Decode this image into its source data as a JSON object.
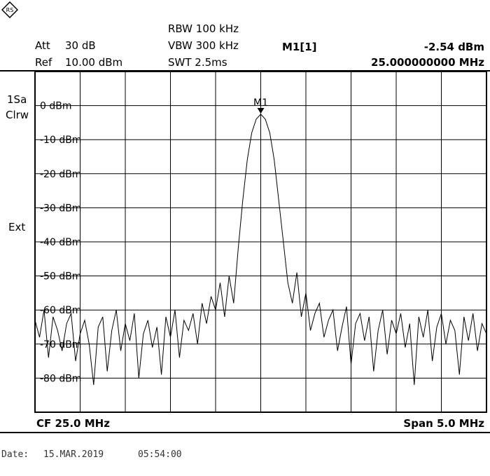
{
  "header": {
    "att_label": "Att",
    "att_value": "30 dB",
    "ref_label": "Ref",
    "ref_value": "10.00 dBm",
    "rbw": "RBW 100 kHz",
    "vbw": "VBW 300 kHz",
    "swt": "SWT 2.5ms",
    "marker_label": "M1[1]",
    "marker_level": "-2.54 dBm",
    "marker_freq": "25.000000000 MHz"
  },
  "side": {
    "trace_label": "1Sa",
    "trace_mode": "Clrw",
    "ext_label": "Ext"
  },
  "bottom": {
    "cf": "CF 25.0 MHz",
    "span": "Span 5.0 MHz"
  },
  "footer": {
    "date_label": "Date:",
    "date": "15.MAR.2019",
    "time": "05:54:00"
  },
  "logo": {
    "icon": "rohde-schwarz-logo-icon"
  },
  "chart_data": {
    "type": "line",
    "xlabel": "",
    "ylabel": "",
    "xlim": [
      22.5,
      27.5
    ],
    "ylim": [
      -90,
      10
    ],
    "grid": true,
    "y_tick_labels": [
      "0 dBm",
      "-10 dBm",
      "-20 dBm",
      "-30 dBm",
      "-40 dBm",
      "-50 dBm",
      "-60 dBm",
      "-70 dBm",
      "-80 dBm"
    ],
    "y_tick_values": [
      0,
      -10,
      -20,
      -30,
      -40,
      -50,
      -60,
      -70,
      -80
    ],
    "marker": {
      "name": "M1",
      "x": 25.0,
      "y": -2.54
    },
    "series": [
      {
        "x": [
          22.5,
          22.55,
          22.6,
          22.65,
          22.7,
          22.75,
          22.8,
          22.85,
          22.9,
          22.95,
          23.0,
          23.05,
          23.1,
          23.15,
          23.2,
          23.25,
          23.3,
          23.35,
          23.4,
          23.45,
          23.5,
          23.55,
          23.6,
          23.65,
          23.7,
          23.75,
          23.8,
          23.85,
          23.9,
          23.95,
          24.0,
          24.05,
          24.1,
          24.15,
          24.2,
          24.25,
          24.3,
          24.35,
          24.4,
          24.45,
          24.5,
          24.55,
          24.6,
          24.65,
          24.7,
          24.75,
          24.8,
          24.85,
          24.9,
          24.95,
          25.0,
          25.05,
          25.1,
          25.15,
          25.2,
          25.25,
          25.3,
          25.35,
          25.4,
          25.45,
          25.5,
          25.55,
          25.6,
          25.65,
          25.7,
          25.75,
          25.8,
          25.85,
          25.9,
          25.95,
          26.0,
          26.05,
          26.1,
          26.15,
          26.2,
          26.25,
          26.3,
          26.35,
          26.4,
          26.45,
          26.5,
          26.55,
          26.6,
          26.65,
          26.7,
          26.75,
          26.8,
          26.85,
          26.9,
          26.95,
          27.0,
          27.05,
          27.1,
          27.15,
          27.2,
          27.25,
          27.3,
          27.35,
          27.4,
          27.45,
          27.5
        ],
        "values": [
          -63,
          -68,
          -60,
          -74,
          -62,
          -66,
          -72,
          -64,
          -61,
          -75,
          -67,
          -63,
          -70,
          -82,
          -65,
          -62,
          -78,
          -66,
          -60,
          -72,
          -64,
          -69,
          -61,
          -80,
          -67,
          -63,
          -71,
          -65,
          -79,
          -62,
          -68,
          -60,
          -74,
          -63,
          -66,
          -61,
          -70,
          -58,
          -64,
          -56,
          -60,
          -52,
          -62,
          -50,
          -58,
          -42,
          -28,
          -16,
          -8,
          -4,
          -2.54,
          -4,
          -8,
          -16,
          -28,
          -40,
          -52,
          -58,
          -49,
          -62,
          -55,
          -66,
          -61,
          -58,
          -68,
          -63,
          -60,
          -72,
          -65,
          -59,
          -76,
          -64,
          -61,
          -69,
          -62,
          -78,
          -66,
          -60,
          -73,
          -63,
          -67,
          -61,
          -71,
          -64,
          -82,
          -62,
          -68,
          -60,
          -75,
          -65,
          -61,
          -70,
          -63,
          -66,
          -79,
          -62,
          -69,
          -61,
          -72,
          -64,
          -67
        ]
      }
    ]
  }
}
